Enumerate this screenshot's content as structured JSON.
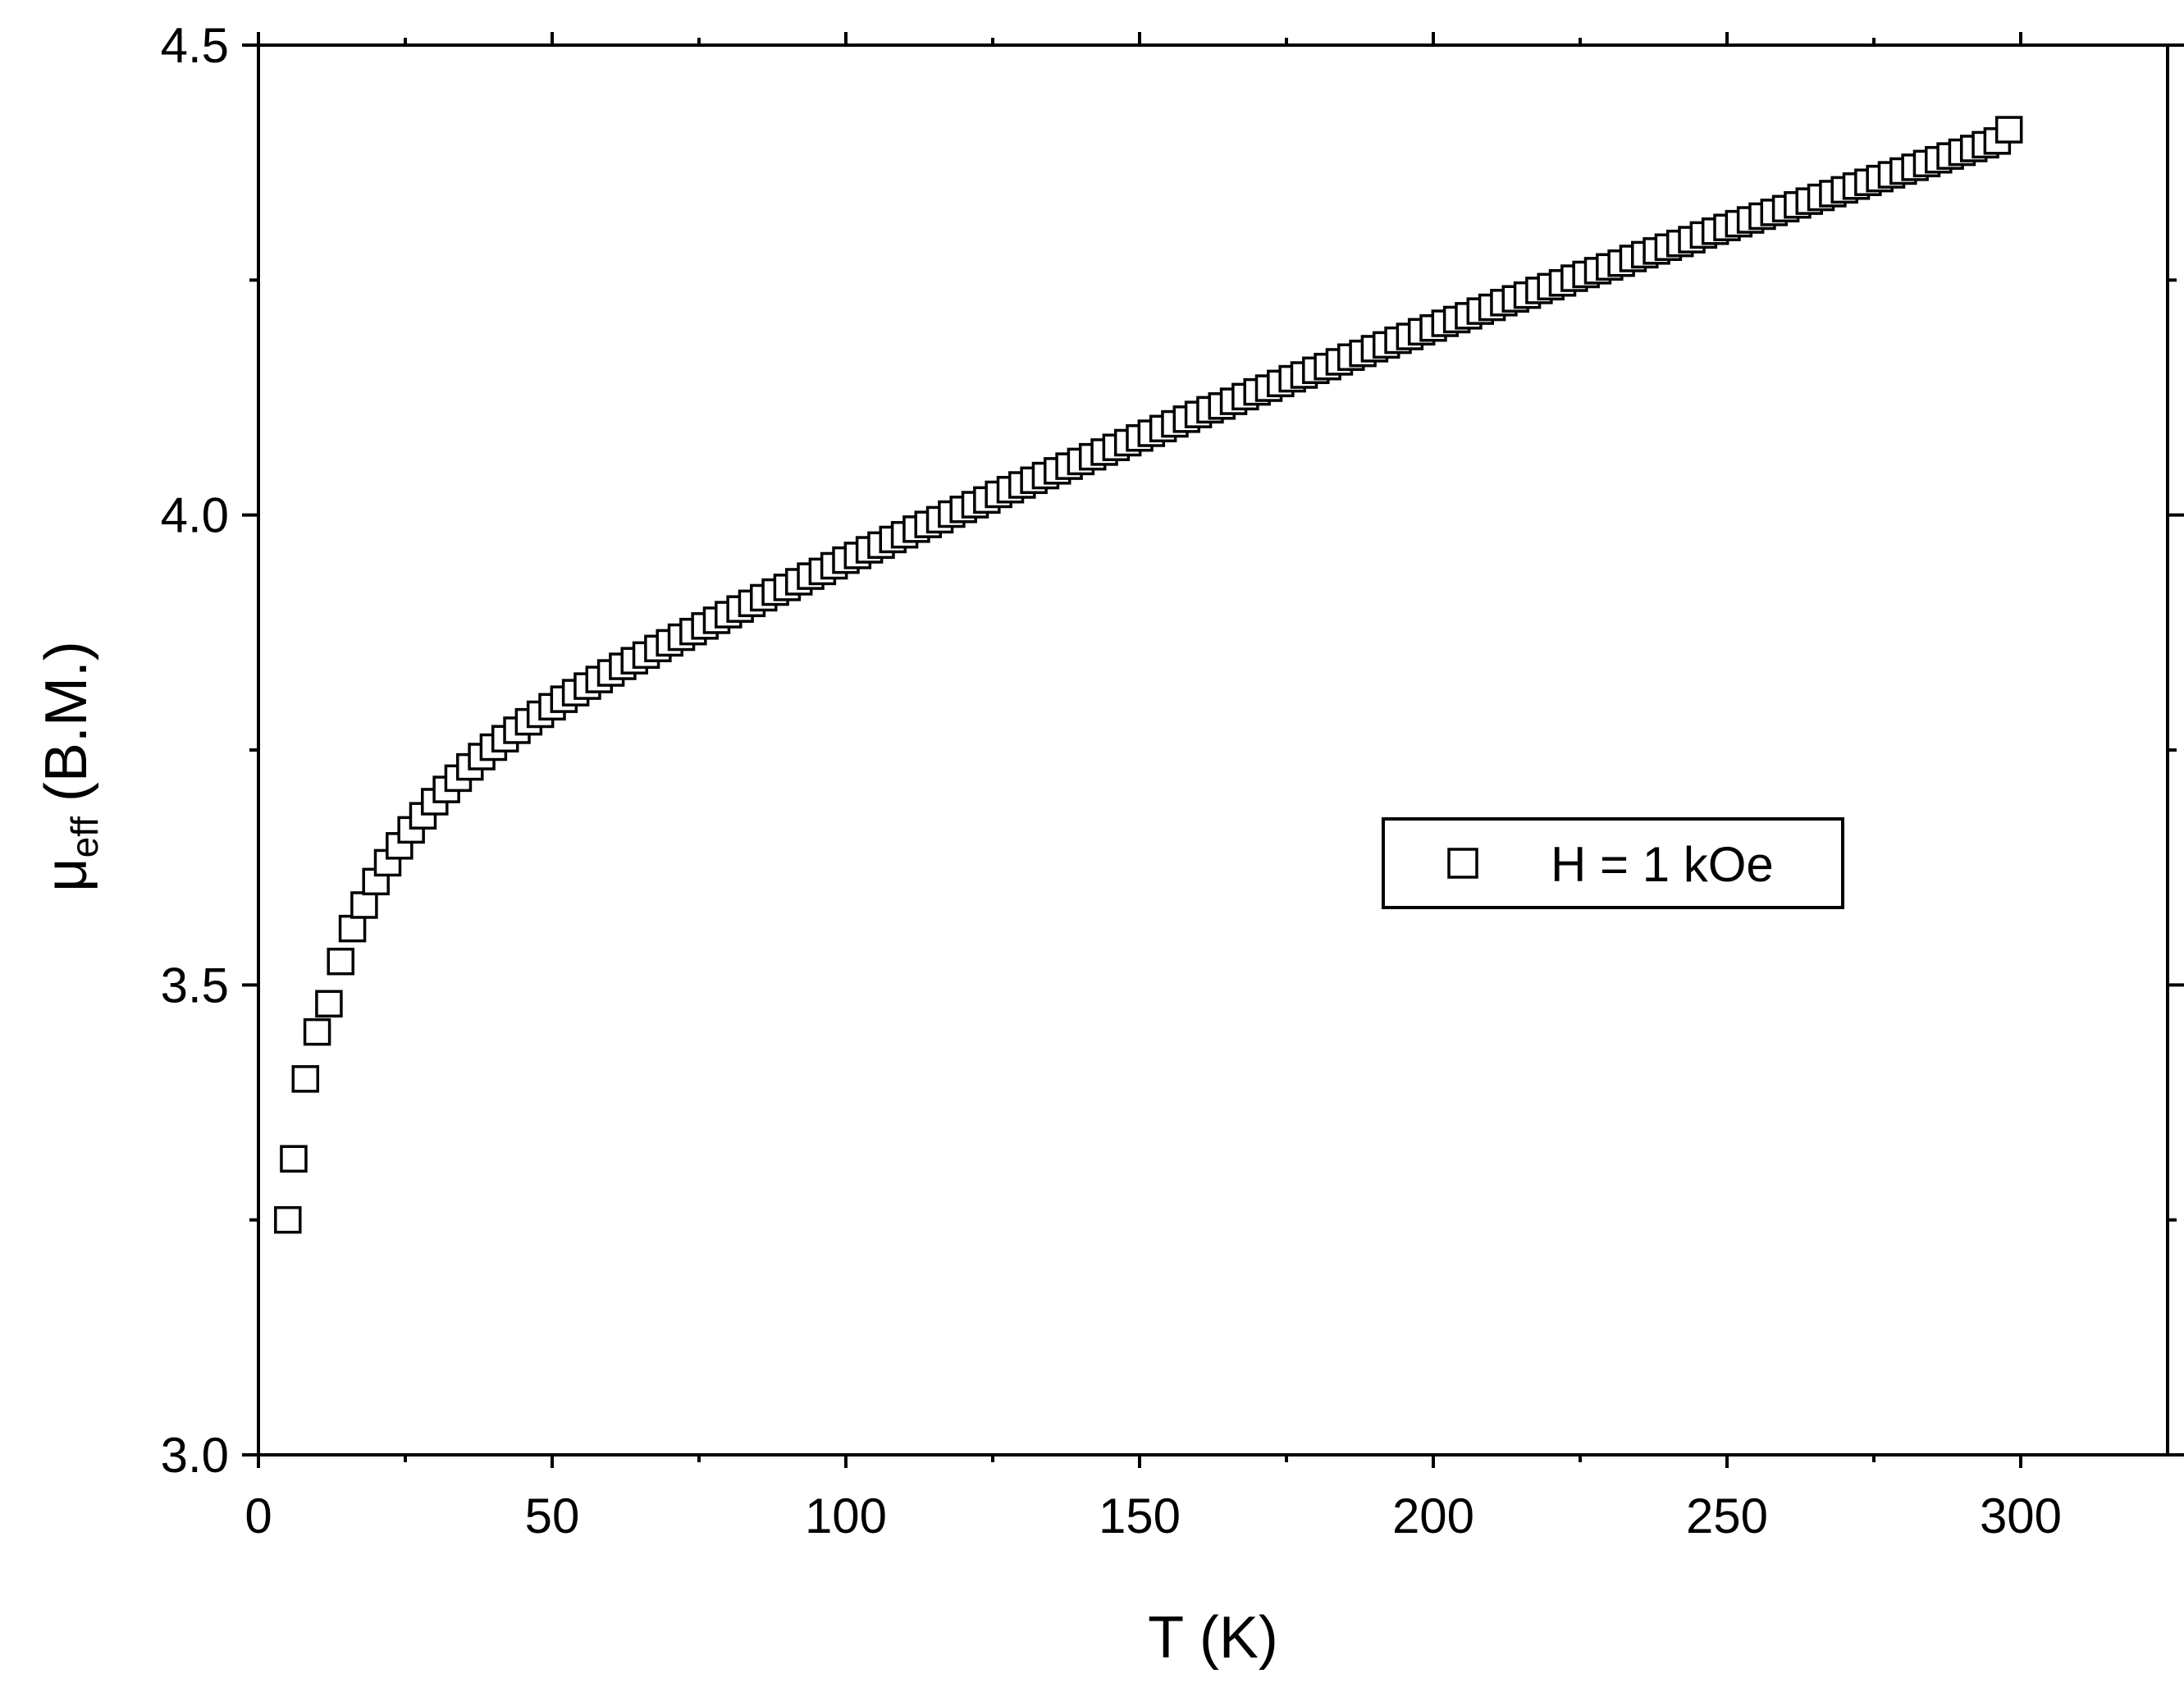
{
  "chart_data": {
    "type": "scatter",
    "xlabel": "T (K)",
    "ylabel": {
      "symbol": "μ",
      "subscript": "eff",
      "unit": "(B.M.)"
    },
    "xlim": [
      0,
      325
    ],
    "ylim": [
      3.0,
      4.5
    ],
    "xticks": [
      0,
      50,
      100,
      150,
      200,
      250,
      300
    ],
    "xtick_labels": [
      "0",
      "50",
      "100",
      "150",
      "200",
      "250",
      "300"
    ],
    "yticks": [
      3.0,
      3.5,
      4.0,
      4.5
    ],
    "ytick_labels": [
      "3.0",
      "3.5",
      "4.0",
      "4.5"
    ],
    "grid": false,
    "legend_position": "middle-right",
    "marker": "open-square",
    "series": [
      {
        "name": "H = 1 kOe",
        "x": [
          5,
          6,
          8,
          10,
          12,
          14,
          16,
          18,
          20,
          22,
          24,
          26,
          28,
          30,
          32,
          34,
          36,
          38,
          40,
          42,
          44,
          46,
          48,
          50,
          52,
          54,
          56,
          58,
          60,
          62,
          64,
          66,
          68,
          70,
          72,
          74,
          76,
          78,
          80,
          82,
          84,
          86,
          88,
          90,
          92,
          94,
          96,
          98,
          100,
          102,
          104,
          106,
          108,
          110,
          112,
          114,
          116,
          118,
          120,
          122,
          124,
          126,
          128,
          130,
          132,
          134,
          136,
          138,
          140,
          142,
          144,
          146,
          148,
          150,
          152,
          154,
          156,
          158,
          160,
          162,
          164,
          166,
          168,
          170,
          172,
          174,
          176,
          178,
          180,
          182,
          184,
          186,
          188,
          190,
          192,
          194,
          196,
          198,
          200,
          202,
          204,
          206,
          208,
          210,
          212,
          214,
          216,
          218,
          220,
          222,
          224,
          226,
          228,
          230,
          232,
          234,
          236,
          238,
          240,
          242,
          244,
          246,
          248,
          250,
          252,
          254,
          256,
          258,
          260,
          262,
          264,
          266,
          268,
          270,
          272,
          274,
          276,
          278,
          280,
          282,
          284,
          286,
          288,
          290,
          292,
          294,
          296,
          298
        ],
        "y": [
          3.25,
          3.315,
          3.4,
          3.45,
          3.48,
          3.525,
          3.56,
          3.585,
          3.61,
          3.63,
          3.648,
          3.665,
          3.68,
          3.695,
          3.708,
          3.72,
          3.732,
          3.743,
          3.753,
          3.762,
          3.771,
          3.78,
          3.788,
          3.796,
          3.804,
          3.811,
          3.818,
          3.825,
          3.832,
          3.839,
          3.845,
          3.851,
          3.858,
          3.864,
          3.87,
          3.876,
          3.882,
          3.888,
          3.894,
          3.9,
          3.906,
          3.912,
          3.918,
          3.923,
          3.929,
          3.935,
          3.94,
          3.946,
          3.952,
          3.957,
          3.963,
          3.968,
          3.974,
          3.979,
          3.985,
          3.99,
          3.995,
          4.001,
          4.006,
          4.011,
          4.016,
          4.022,
          4.027,
          4.032,
          4.037,
          4.042,
          4.047,
          4.052,
          4.057,
          4.062,
          4.067,
          4.072,
          4.077,
          4.082,
          4.087,
          4.092,
          4.097,
          4.102,
          4.107,
          4.112,
          4.116,
          4.121,
          4.126,
          4.131,
          4.135,
          4.14,
          4.145,
          4.149,
          4.154,
          4.158,
          4.163,
          4.168,
          4.172,
          4.177,
          4.181,
          4.186,
          4.19,
          4.195,
          4.199,
          4.204,
          4.208,
          4.212,
          4.217,
          4.221,
          4.226,
          4.23,
          4.234,
          4.239,
          4.243,
          4.247,
          4.252,
          4.256,
          4.26,
          4.264,
          4.268,
          4.273,
          4.277,
          4.281,
          4.285,
          4.289,
          4.293,
          4.298,
          4.302,
          4.306,
          4.31,
          4.314,
          4.318,
          4.322,
          4.326,
          4.33,
          4.334,
          4.338,
          4.342,
          4.346,
          4.35,
          4.354,
          4.358,
          4.362,
          4.366,
          4.37,
          4.374,
          4.378,
          4.382,
          4.386,
          4.39,
          4.394,
          4.398,
          4.41
        ]
      }
    ]
  }
}
